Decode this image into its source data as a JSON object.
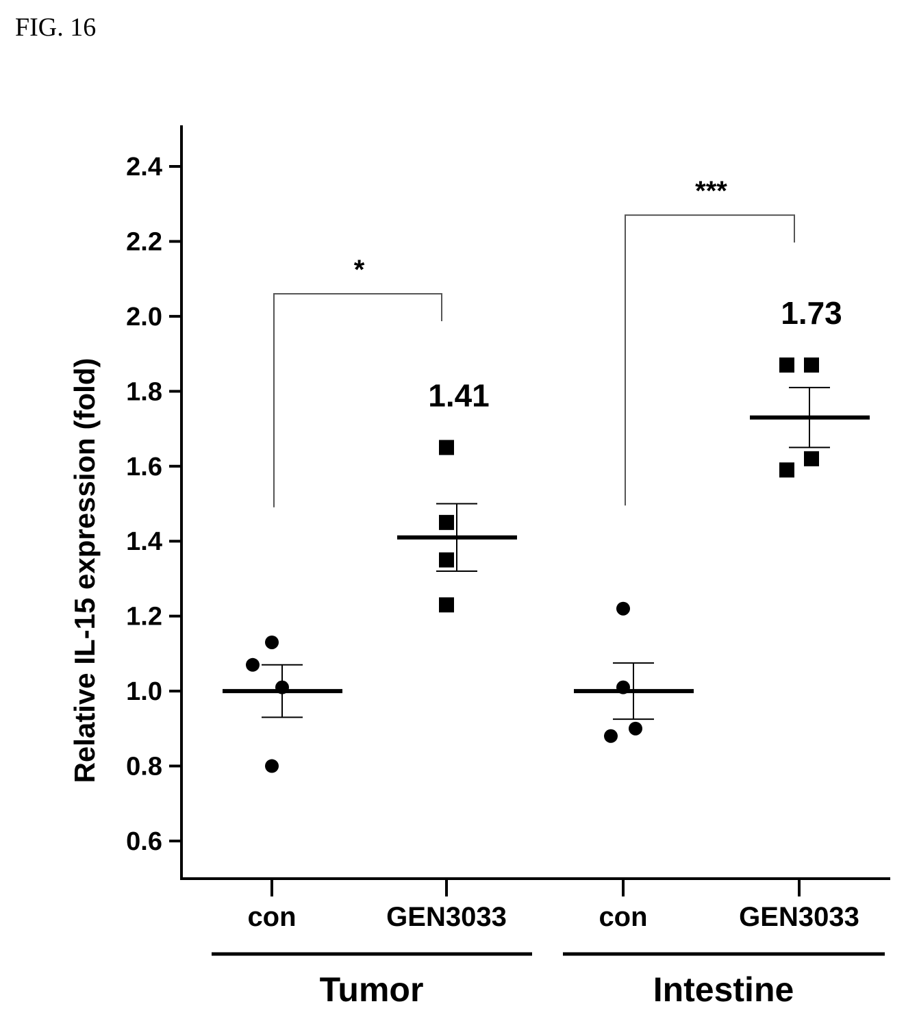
{
  "figure_label": "FIG. 16",
  "colors": {
    "ink": "#000000",
    "bracket": "#555555"
  },
  "chart_data": {
    "type": "scatter",
    "ylabel": "Relative IL-15 expression (fold)",
    "ylim": [
      0.5,
      2.5
    ],
    "yticks": [
      "0.6",
      "0.8",
      "1.0",
      "1.2",
      "1.4",
      "1.6",
      "1.8",
      "2.0",
      "2.2",
      "2.4"
    ],
    "categories": [
      "con",
      "GEN3033",
      "con",
      "GEN3033"
    ],
    "groups": [
      {
        "name": "Tumor",
        "categories": [
          0,
          1
        ]
      },
      {
        "name": "Intestine",
        "categories": [
          2,
          3
        ]
      }
    ],
    "series": [
      {
        "category": 0,
        "marker": "circle",
        "values": [
          1.13,
          1.07,
          1.01,
          0.8
        ],
        "mean": 1.0,
        "sem": 0.07
      },
      {
        "category": 1,
        "marker": "square",
        "values": [
          1.65,
          1.45,
          1.35,
          1.23
        ],
        "mean": 1.41,
        "sem": 0.09,
        "mean_label": "1.41"
      },
      {
        "category": 2,
        "marker": "circle",
        "values": [
          1.22,
          1.01,
          0.9,
          0.88
        ],
        "mean": 1.0,
        "sem": 0.075
      },
      {
        "category": 3,
        "marker": "square",
        "values": [
          1.87,
          1.87,
          1.62,
          1.59
        ],
        "mean": 1.73,
        "sem": 0.08,
        "mean_label": "1.73"
      }
    ],
    "significance": [
      {
        "from": 0,
        "to": 1,
        "y": 2.06,
        "label": "*"
      },
      {
        "from": 2,
        "to": 3,
        "y": 2.27,
        "label": "***"
      }
    ],
    "grid": false,
    "legend": "none"
  }
}
